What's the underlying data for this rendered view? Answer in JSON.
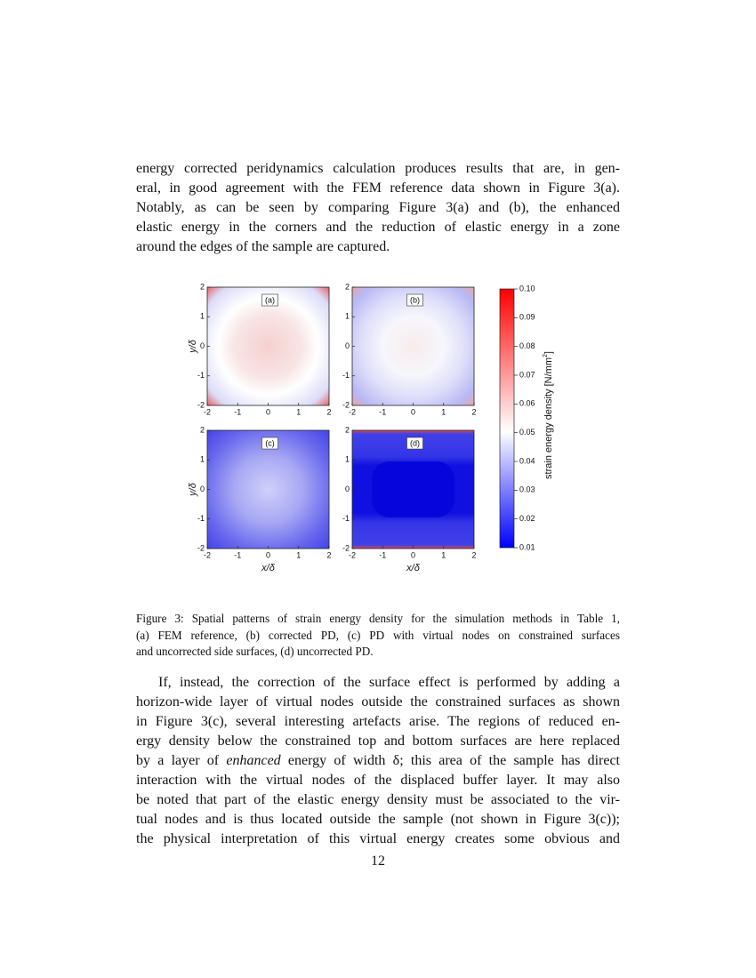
{
  "paragraphs": [
    {
      "lines": [
        "energy corrected peridynamics calculation produces results that are, in gen-",
        "eral, in good agreement with the FEM reference data shown in Figure 3(a).",
        "Notably, as can be seen by comparing Figure 3(a) and (b), the enhanced",
        "elastic energy in the corners and the reduction of elastic energy in a zone",
        "around the edges of the sample are captured."
      ]
    },
    {
      "lines": [
        "If, instead, the correction of the surface effect is performed by adding a",
        "horizon-wide layer of virtual nodes outside the constrained surfaces as shown",
        "in Figure 3(c), several interesting artefacts arise. The regions of reduced en-",
        "ergy density below the constrained top and bottom surfaces are here replaced",
        [
          "by a layer of ",
          "enhanced",
          " energy of width δ; this area of the sample has direct"
        ],
        "interaction with the virtual nodes of the displaced buffer layer. It may also",
        "be noted that part of the elastic energy density must be associated to the vir-",
        "tual nodes and is thus located outside the sample (not shown in Figure 3(c));",
        "the physical interpretation of this virtual energy creates some obvious and"
      ]
    }
  ],
  "figure": {
    "panels": [
      {
        "label": "(a)"
      },
      {
        "label": "(b)"
      },
      {
        "label": "(c)"
      },
      {
        "label": "(d)"
      }
    ],
    "x_ticks": [
      -2,
      -1,
      0,
      1,
      2
    ],
    "y_ticks": [
      -2,
      -1,
      0,
      1,
      2
    ],
    "x_axis_label": "x/δ",
    "y_axis_label": "y/δ",
    "colorbar": {
      "ticks": [
        0.01,
        0.02,
        0.03,
        0.04,
        0.05,
        0.06,
        0.07,
        0.08,
        0.09,
        {
          "value": 0.1,
          "label": "0.10"
        }
      ],
      "label": "strain energy density [N/mm",
      "label_sup": "2",
      "label_end": "]"
    }
  },
  "caption": {
    "lines": [
      "Figure 3: Spatial patterns of strain energy density for the simulation methods in Table 1,",
      "(a) FEM reference, (b) corrected PD, (c) PD with virtual nodes on constrained surfaces",
      "and uncorrected side surfaces, (d) uncorrected PD."
    ]
  },
  "page_number": "12"
}
